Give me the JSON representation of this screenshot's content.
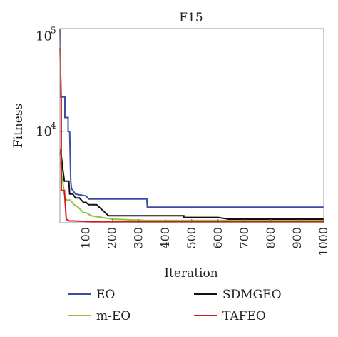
{
  "chart_data": {
    "type": "line",
    "title": "F15",
    "xlabel": "Iteration",
    "ylabel": "Fitness",
    "y_scale": "log",
    "xlim": [
      1,
      1000
    ],
    "ylim": [
      1100,
      120000
    ],
    "x_ticks": [
      100,
      200,
      300,
      400,
      500,
      600,
      700,
      800,
      900,
      1000
    ],
    "x_tick_labels": [
      "100",
      "200",
      "300",
      "400",
      "500",
      "600",
      "700",
      "800",
      "900",
      "1000"
    ],
    "y_ticks": [
      10000,
      100000
    ],
    "y_tick_labels": [
      {
        "base": "10",
        "exp": "4"
      },
      {
        "base": "10",
        "exp": "5"
      }
    ],
    "grid": false,
    "legend_position": "bottom",
    "series": [
      {
        "name": "EO",
        "color": "#3a4fa3",
        "points": [
          [
            1,
            120000
          ],
          [
            5,
            23000
          ],
          [
            20,
            23000
          ],
          [
            20,
            14000
          ],
          [
            32,
            14000
          ],
          [
            32,
            10000
          ],
          [
            38,
            10000
          ],
          [
            42,
            3000
          ],
          [
            45,
            2500
          ],
          [
            60,
            2200
          ],
          [
            100,
            2100
          ],
          [
            110,
            1950
          ],
          [
            330,
            1950
          ],
          [
            332,
            1600
          ],
          [
            1000,
            1600
          ]
        ]
      },
      {
        "name": "m-EO",
        "color": "#8cc63f",
        "points": [
          [
            1,
            6000
          ],
          [
            8,
            3500
          ],
          [
            18,
            2200
          ],
          [
            25,
            1900
          ],
          [
            40,
            1900
          ],
          [
            55,
            1700
          ],
          [
            70,
            1600
          ],
          [
            90,
            1400
          ],
          [
            100,
            1400
          ],
          [
            120,
            1300
          ],
          [
            160,
            1250
          ],
          [
            200,
            1200
          ],
          [
            330,
            1160
          ],
          [
            500,
            1160
          ],
          [
            1000,
            1160
          ]
        ]
      },
      {
        "name": "SDMGEO",
        "color": "#111111",
        "points": [
          [
            1,
            6500
          ],
          [
            5,
            6500
          ],
          [
            5,
            6000
          ],
          [
            12,
            4000
          ],
          [
            18,
            3000
          ],
          [
            35,
            3000
          ],
          [
            38,
            2200
          ],
          [
            50,
            2200
          ],
          [
            60,
            2000
          ],
          [
            75,
            2000
          ],
          [
            90,
            1800
          ],
          [
            100,
            1800
          ],
          [
            110,
            1700
          ],
          [
            140,
            1700
          ],
          [
            185,
            1300
          ],
          [
            190,
            1300
          ],
          [
            470,
            1300
          ],
          [
            470,
            1250
          ],
          [
            600,
            1250
          ],
          [
            640,
            1200
          ],
          [
            1000,
            1200
          ]
        ]
      },
      {
        "name": "TAFEO",
        "color": "#d7191c",
        "points": [
          [
            1,
            75000
          ],
          [
            6,
            22000
          ],
          [
            6,
            2400
          ],
          [
            18,
            2400
          ],
          [
            25,
            1200
          ],
          [
            35,
            1150
          ],
          [
            120,
            1130
          ],
          [
            1000,
            1130
          ]
        ]
      }
    ]
  }
}
